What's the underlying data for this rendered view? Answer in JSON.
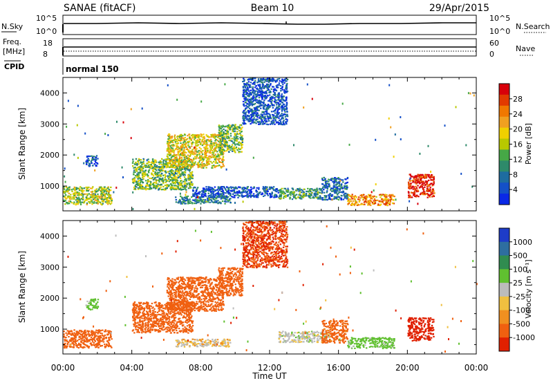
{
  "header": {
    "station": "SANAE (fitACF)",
    "beam": "Beam 10",
    "date": "29/Apr/2015"
  },
  "noise_panel": {
    "left_label": "N.Sky",
    "right_label": "N.Search",
    "scale_top": "10^5",
    "scale_bottom": "10^0"
  },
  "freq_panel": {
    "left_label_line1": "Freq.",
    "left_label_line2": "[MHz]",
    "left_top": "18",
    "left_bottom": "8",
    "right_label": "Nave",
    "right_top": "60",
    "right_bottom": "0"
  },
  "cpid": {
    "label": "CPID",
    "value": "normal 150"
  },
  "power_panel": {
    "ylabel": "Slant Range [km]",
    "cbar_label": "Power [dB]",
    "cbar_ticks": [
      "28",
      "24",
      "20",
      "16",
      "12",
      "8",
      "4"
    ],
    "cbar_colors": [
      "#d8000a",
      "#e23a00",
      "#f07800",
      "#f0a020",
      "#f0d000",
      "#b8c800",
      "#46a846",
      "#2e8a6a",
      "#1e6ca0",
      "#1450c8",
      "#0a28e6"
    ]
  },
  "velocity_panel": {
    "ylabel": "Slant Range [km]",
    "cbar_label": "Velocity [m s⁻¹]",
    "cbar_ticks": [
      "1000",
      "500",
      "100",
      "25",
      "-25",
      "-100",
      "-500",
      "-1000"
    ],
    "cbar_colors": [
      "#1e3cc8",
      "#2e6ea0",
      "#308c50",
      "#60c030",
      "#bcbcbc",
      "#f0c040",
      "#f09020",
      "#f06010",
      "#e02000"
    ]
  },
  "xaxis": {
    "label": "Time UT",
    "ticks": [
      "00:00",
      "04:00",
      "08:00",
      "12:00",
      "16:00",
      "20:00",
      "00:00"
    ]
  },
  "chart_data": {
    "type": "heatmap",
    "title": "SANAE (fitACF)   Beam 10   29/Apr/2015",
    "xlabel": "Time UT",
    "ylabel": "Slant Range [km]",
    "xlim": [
      0,
      24
    ],
    "ylim": [
      200,
      4500
    ],
    "yticks": [
      1000,
      2000,
      3000,
      4000
    ],
    "xticks": [
      "00:00",
      "04:00",
      "08:00",
      "12:00",
      "16:00",
      "20:00",
      "00:00"
    ],
    "power": {
      "colorbar": "Power [dB]",
      "range": [
        2,
        30
      ],
      "patches": [
        {
          "t0": 0.0,
          "t1": 2.8,
          "r0": 420,
          "r1": 1000,
          "level": 16
        },
        {
          "t0": 1.3,
          "t1": 2.0,
          "r0": 1650,
          "r1": 2000,
          "level": 6
        },
        {
          "t0": 4.0,
          "t1": 7.5,
          "r0": 900,
          "r1": 1900,
          "level": 14
        },
        {
          "t0": 6.0,
          "t1": 9.3,
          "r0": 1600,
          "r1": 2700,
          "level": 18
        },
        {
          "t0": 9.0,
          "t1": 10.4,
          "r0": 2100,
          "r1": 3000,
          "level": 14
        },
        {
          "t0": 10.4,
          "t1": 13.0,
          "r0": 3000,
          "r1": 4500,
          "level": 6
        },
        {
          "t0": 6.5,
          "t1": 9.7,
          "r0": 450,
          "r1": 700,
          "level": 10
        },
        {
          "t0": 7.5,
          "t1": 12.5,
          "r0": 650,
          "r1": 1000,
          "level": 6
        },
        {
          "t0": 12.5,
          "t1": 15.0,
          "r0": 600,
          "r1": 950,
          "level": 12
        },
        {
          "t0": 15.0,
          "t1": 16.5,
          "r0": 580,
          "r1": 1300,
          "level": 8
        },
        {
          "t0": 16.5,
          "t1": 19.2,
          "r0": 400,
          "r1": 750,
          "level": 22
        },
        {
          "t0": 20.0,
          "t1": 21.5,
          "r0": 650,
          "r1": 1400,
          "level": 28
        }
      ]
    },
    "velocity": {
      "colorbar": "Velocity [m s⁻¹]",
      "range": [
        -1000,
        1000
      ],
      "patches": [
        {
          "t0": 0.0,
          "t1": 2.8,
          "r0": 420,
          "r1": 1000,
          "level": -200
        },
        {
          "t0": 1.3,
          "t1": 2.0,
          "r0": 1650,
          "r1": 2000,
          "level": 150
        },
        {
          "t0": 4.0,
          "t1": 7.5,
          "r0": 900,
          "r1": 1900,
          "level": -250
        },
        {
          "t0": 6.0,
          "t1": 9.3,
          "r0": 1600,
          "r1": 2700,
          "level": -200
        },
        {
          "t0": 9.0,
          "t1": 10.4,
          "r0": 2100,
          "r1": 3000,
          "level": -250
        },
        {
          "t0": 10.4,
          "t1": 13.0,
          "r0": 3000,
          "r1": 4500,
          "level": -500
        },
        {
          "t0": 6.5,
          "t1": 9.7,
          "r0": 450,
          "r1": 700,
          "level": 10
        },
        {
          "t0": 12.5,
          "t1": 15.5,
          "r0": 600,
          "r1": 950,
          "level": 60
        },
        {
          "t0": 15.0,
          "t1": 16.5,
          "r0": 580,
          "r1": 1300,
          "level": -150
        },
        {
          "t0": 16.5,
          "t1": 19.2,
          "r0": 400,
          "r1": 750,
          "level": 150
        },
        {
          "t0": 20.0,
          "t1": 21.5,
          "r0": 650,
          "r1": 1400,
          "level": -800
        }
      ]
    }
  }
}
